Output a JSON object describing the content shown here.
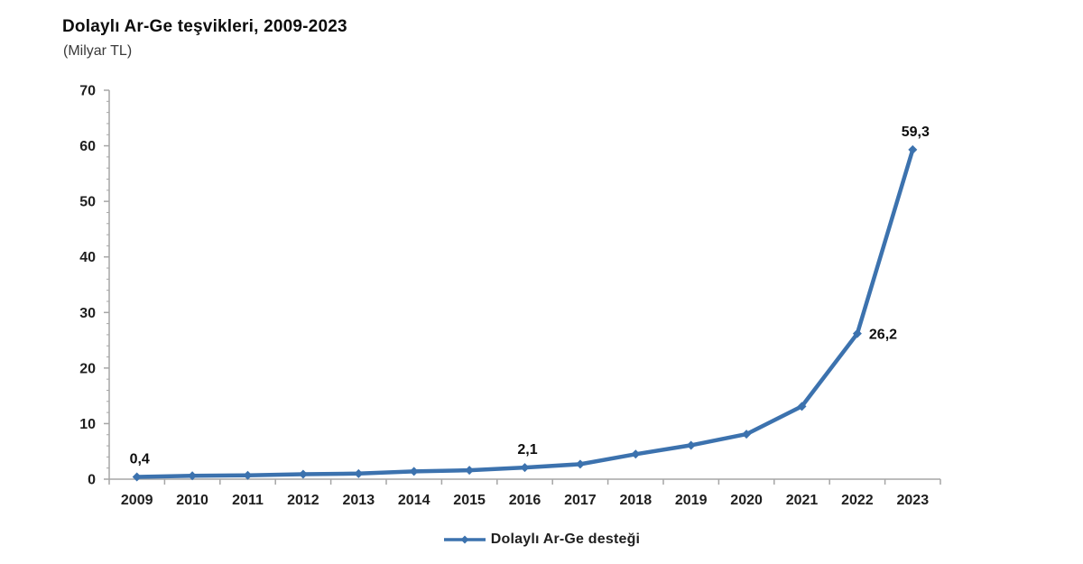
{
  "chart_data": {
    "type": "line",
    "title": "Dolaylı Ar-Ge teşvikleri, 2009-2023",
    "subtitle": "(Milyar TL)",
    "categories": [
      "2009",
      "2010",
      "2011",
      "2012",
      "2013",
      "2014",
      "2015",
      "2016",
      "2017",
      "2018",
      "2019",
      "2020",
      "2021",
      "2022",
      "2023"
    ],
    "series": [
      {
        "name": "Dolaylı Ar-Ge desteği",
        "values": [
          0.4,
          0.6,
          0.7,
          0.9,
          1.0,
          1.4,
          1.6,
          2.1,
          2.7,
          4.5,
          6.1,
          8.1,
          13.1,
          26.2,
          59.3
        ]
      }
    ],
    "point_labels": [
      {
        "category": "2009",
        "text": "0,4",
        "position": "above"
      },
      {
        "category": "2016",
        "text": "2,1",
        "position": "above"
      },
      {
        "category": "2022",
        "text": "26,2",
        "position": "right"
      },
      {
        "category": "2023",
        "text": "59,3",
        "position": "above"
      }
    ],
    "ylim": [
      0,
      70
    ],
    "ytick_step": 10,
    "y_minor_step": 2,
    "grid": false,
    "legend_position": "bottom",
    "colors": {
      "line": "#3C72AE",
      "axis": "#A6A6A6",
      "tick_label": "#1F1F1F"
    }
  }
}
